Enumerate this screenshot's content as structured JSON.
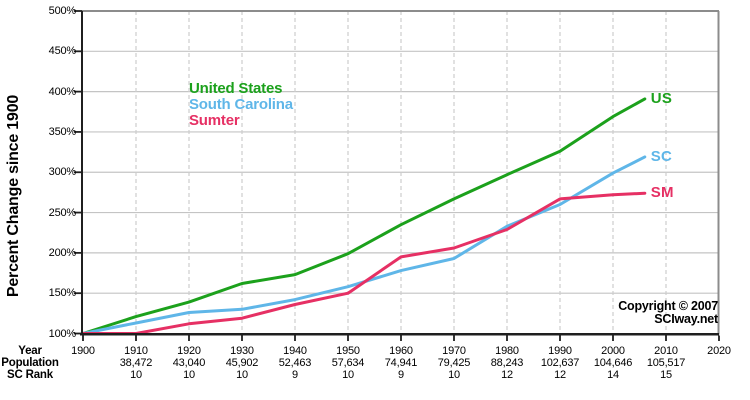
{
  "copyright": {
    "line1": "Copyright © 2007",
    "line2": "SCIway.net"
  },
  "table": {
    "row_headers": [
      "Year",
      "Population",
      "SC Rank"
    ],
    "columns": [
      {
        "year": "1900",
        "population": "",
        "rank": ""
      },
      {
        "year": "1910",
        "population": "38,472",
        "rank": "10"
      },
      {
        "year": "1920",
        "population": "43,040",
        "rank": "10"
      },
      {
        "year": "1930",
        "population": "45,902",
        "rank": "10"
      },
      {
        "year": "1940",
        "population": "52,463",
        "rank": "9"
      },
      {
        "year": "1950",
        "population": "57,634",
        "rank": "10"
      },
      {
        "year": "1960",
        "population": "74,941",
        "rank": "9"
      },
      {
        "year": "1970",
        "population": "79,425",
        "rank": "10"
      },
      {
        "year": "1980",
        "population": "88,243",
        "rank": "12"
      },
      {
        "year": "1990",
        "population": "102,637",
        "rank": "12"
      },
      {
        "year": "2000",
        "population": "104,646",
        "rank": "14"
      },
      {
        "year": "2010",
        "population": "105,517",
        "rank": "15"
      },
      {
        "year": "2020",
        "population": "",
        "rank": ""
      }
    ]
  },
  "chart_data": {
    "type": "line",
    "title": "",
    "ylabel": "Percent Change since 1900",
    "xlabel": "Year",
    "ylim": [
      100,
      500
    ],
    "y_tick_step": 50,
    "y_tick_suffix": "%",
    "xlim": [
      1900,
      2020
    ],
    "x_tick_step": 10,
    "grid": true,
    "legend_position": "inside-top-left",
    "x": [
      1900,
      1910,
      1920,
      1930,
      1940,
      1950,
      1960,
      1970,
      1980,
      1990,
      2000,
      2006
    ],
    "series": [
      {
        "name": "United States",
        "short": "US",
        "color": "#1CA11C",
        "values": [
          100,
          121,
          139,
          162,
          173,
          199,
          235,
          267,
          297,
          326,
          369,
          391
        ]
      },
      {
        "name": "South Carolina",
        "short": "SC",
        "color": "#5FB6E8",
        "values": [
          100,
          113,
          126,
          130,
          142,
          158,
          178,
          193,
          233,
          260,
          299,
          319
        ]
      },
      {
        "name": "Sumter",
        "short": "SM",
        "color": "#E63064",
        "values": [
          100,
          100,
          112,
          119,
          136,
          150,
          195,
          206,
          229,
          267,
          272,
          274
        ]
      }
    ],
    "frame_colors": {
      "axis": "#1f1f1f",
      "border": "#8c8c8c",
      "grid_solid": "#c4c4c4",
      "grid_dashed": "#cdcdcd"
    }
  }
}
